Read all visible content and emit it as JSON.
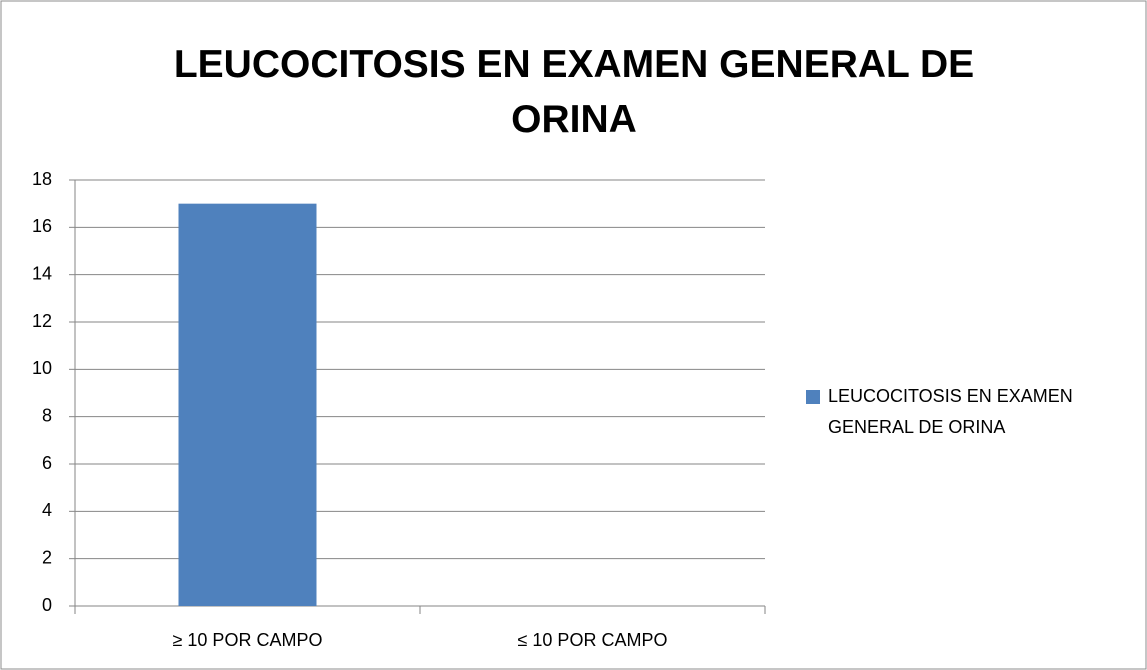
{
  "chart_data": {
    "type": "bar",
    "title": "LEUCOCITOSIS EN EXAMEN GENERAL DE ORINA",
    "categories": [
      "≥ 10 POR CAMPO",
      "≤ 10 POR CAMPO"
    ],
    "series": [
      {
        "name": "LEUCOCITOSIS EN EXAMEN GENERAL DE ORINA",
        "color": "#4f81bd",
        "values": [
          17,
          0
        ]
      }
    ],
    "ylim": [
      0,
      18
    ],
    "yticks": [
      0,
      2,
      4,
      6,
      8,
      10,
      12,
      14,
      16,
      18
    ],
    "grid": true,
    "legend": "right"
  }
}
